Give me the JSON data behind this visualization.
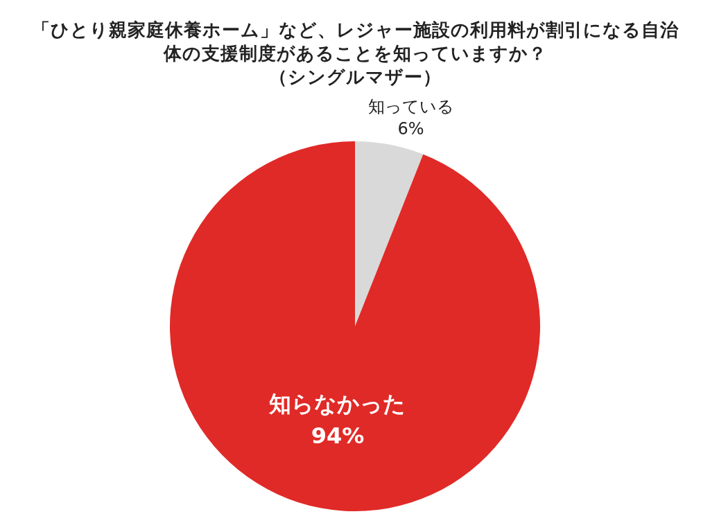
{
  "chart_data": {
    "type": "pie",
    "title": "「ひとり親家庭休養ホーム」など、レジャー施設の利用料が割引になる自治体の支援制度があることを知っていますか？",
    "subtitle": "（シングルマザー）",
    "categories": [
      "知っている",
      "知らなかった"
    ],
    "values": [
      6,
      94
    ],
    "colors": [
      "#d9d9d9",
      "#e02a27"
    ],
    "value_labels": [
      "6%",
      "94%"
    ]
  }
}
